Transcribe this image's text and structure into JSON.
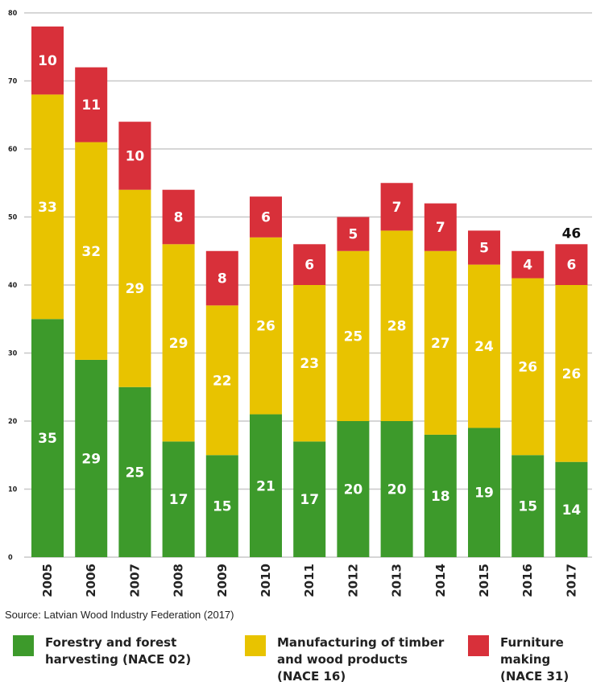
{
  "chart_data": {
    "type": "bar",
    "stacked": true,
    "categories": [
      "2005",
      "2006",
      "2007",
      "2008",
      "2009",
      "2010",
      "2011",
      "2012",
      "2013",
      "2014",
      "2015",
      "2016",
      "2017"
    ],
    "series": [
      {
        "name": "Forestry and  forest\nharvesting (NACE 02)",
        "color": "#3d9a2b",
        "values": [
          35,
          29,
          25,
          17,
          15,
          21,
          17,
          20,
          20,
          18,
          19,
          15,
          14
        ]
      },
      {
        "name": "Manufacturing of timber\nand wood products\n(NACE 16)",
        "color": "#e8c300",
        "values": [
          33,
          32,
          29,
          29,
          22,
          26,
          23,
          25,
          28,
          27,
          24,
          26,
          26
        ]
      },
      {
        "name": "Furniture making\n(NACE 31)",
        "color": "#d8303a",
        "values": [
          10,
          11,
          10,
          8,
          8,
          6,
          6,
          5,
          7,
          7,
          5,
          4,
          6
        ]
      }
    ],
    "yticks": [
      0,
      10,
      20,
      30,
      40,
      50,
      60,
      70,
      80
    ],
    "ylim": [
      0,
      80
    ],
    "grid": true,
    "annotation": {
      "category": "2017",
      "text": "46"
    },
    "source": "Source: Latvian Wood Industry Federation (2017)"
  }
}
